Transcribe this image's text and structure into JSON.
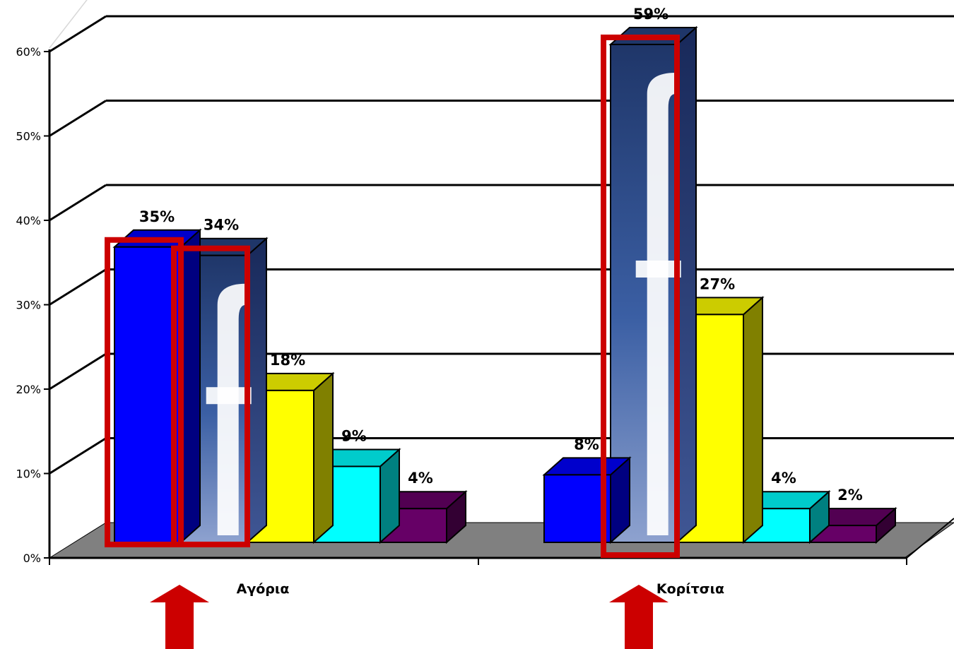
{
  "chart_data": {
    "type": "bar",
    "title": "",
    "xlabel": "",
    "ylabel": "",
    "categories": [
      "Αγόρια",
      "Κορίτσια"
    ],
    "ylim": [
      0,
      60
    ],
    "y_ticks": [
      "0%",
      "10%",
      "20%",
      "30%",
      "40%",
      "50%",
      "60%"
    ],
    "grid": true,
    "legend": "none",
    "series": [
      {
        "values": [
          35,
          8
        ],
        "labels": [
          "35%",
          "8%"
        ],
        "color": "#0000ff"
      },
      {
        "values": [
          34,
          59
        ],
        "labels": [
          "34%",
          "59%"
        ],
        "color": "#2b4a84",
        "fill": "facebook-logo-image"
      },
      {
        "values": [
          18,
          27
        ],
        "labels": [
          "18%",
          "27%"
        ],
        "color": "#ffff00"
      },
      {
        "values": [
          9,
          4
        ],
        "labels": [
          "9%",
          "4%"
        ],
        "color": "#00ffff"
      },
      {
        "values": [
          4,
          2
        ],
        "labels": [
          "4%",
          "2%"
        ],
        "color": "#660066"
      }
    ],
    "highlights": [
      {
        "category": "Αγόρια",
        "series": [
          0,
          1
        ],
        "color": "#cc0000"
      },
      {
        "category": "Κορίτσια",
        "series": [
          1
        ],
        "color": "#cc0000"
      }
    ],
    "arrows": [
      {
        "category": "Αγόρια",
        "icon": "up-arrow-icon",
        "color": "#cc0000"
      },
      {
        "category": "Κορίτσια",
        "icon": "up-arrow-icon",
        "color": "#cc0000"
      }
    ],
    "floor_color": "#808080"
  }
}
